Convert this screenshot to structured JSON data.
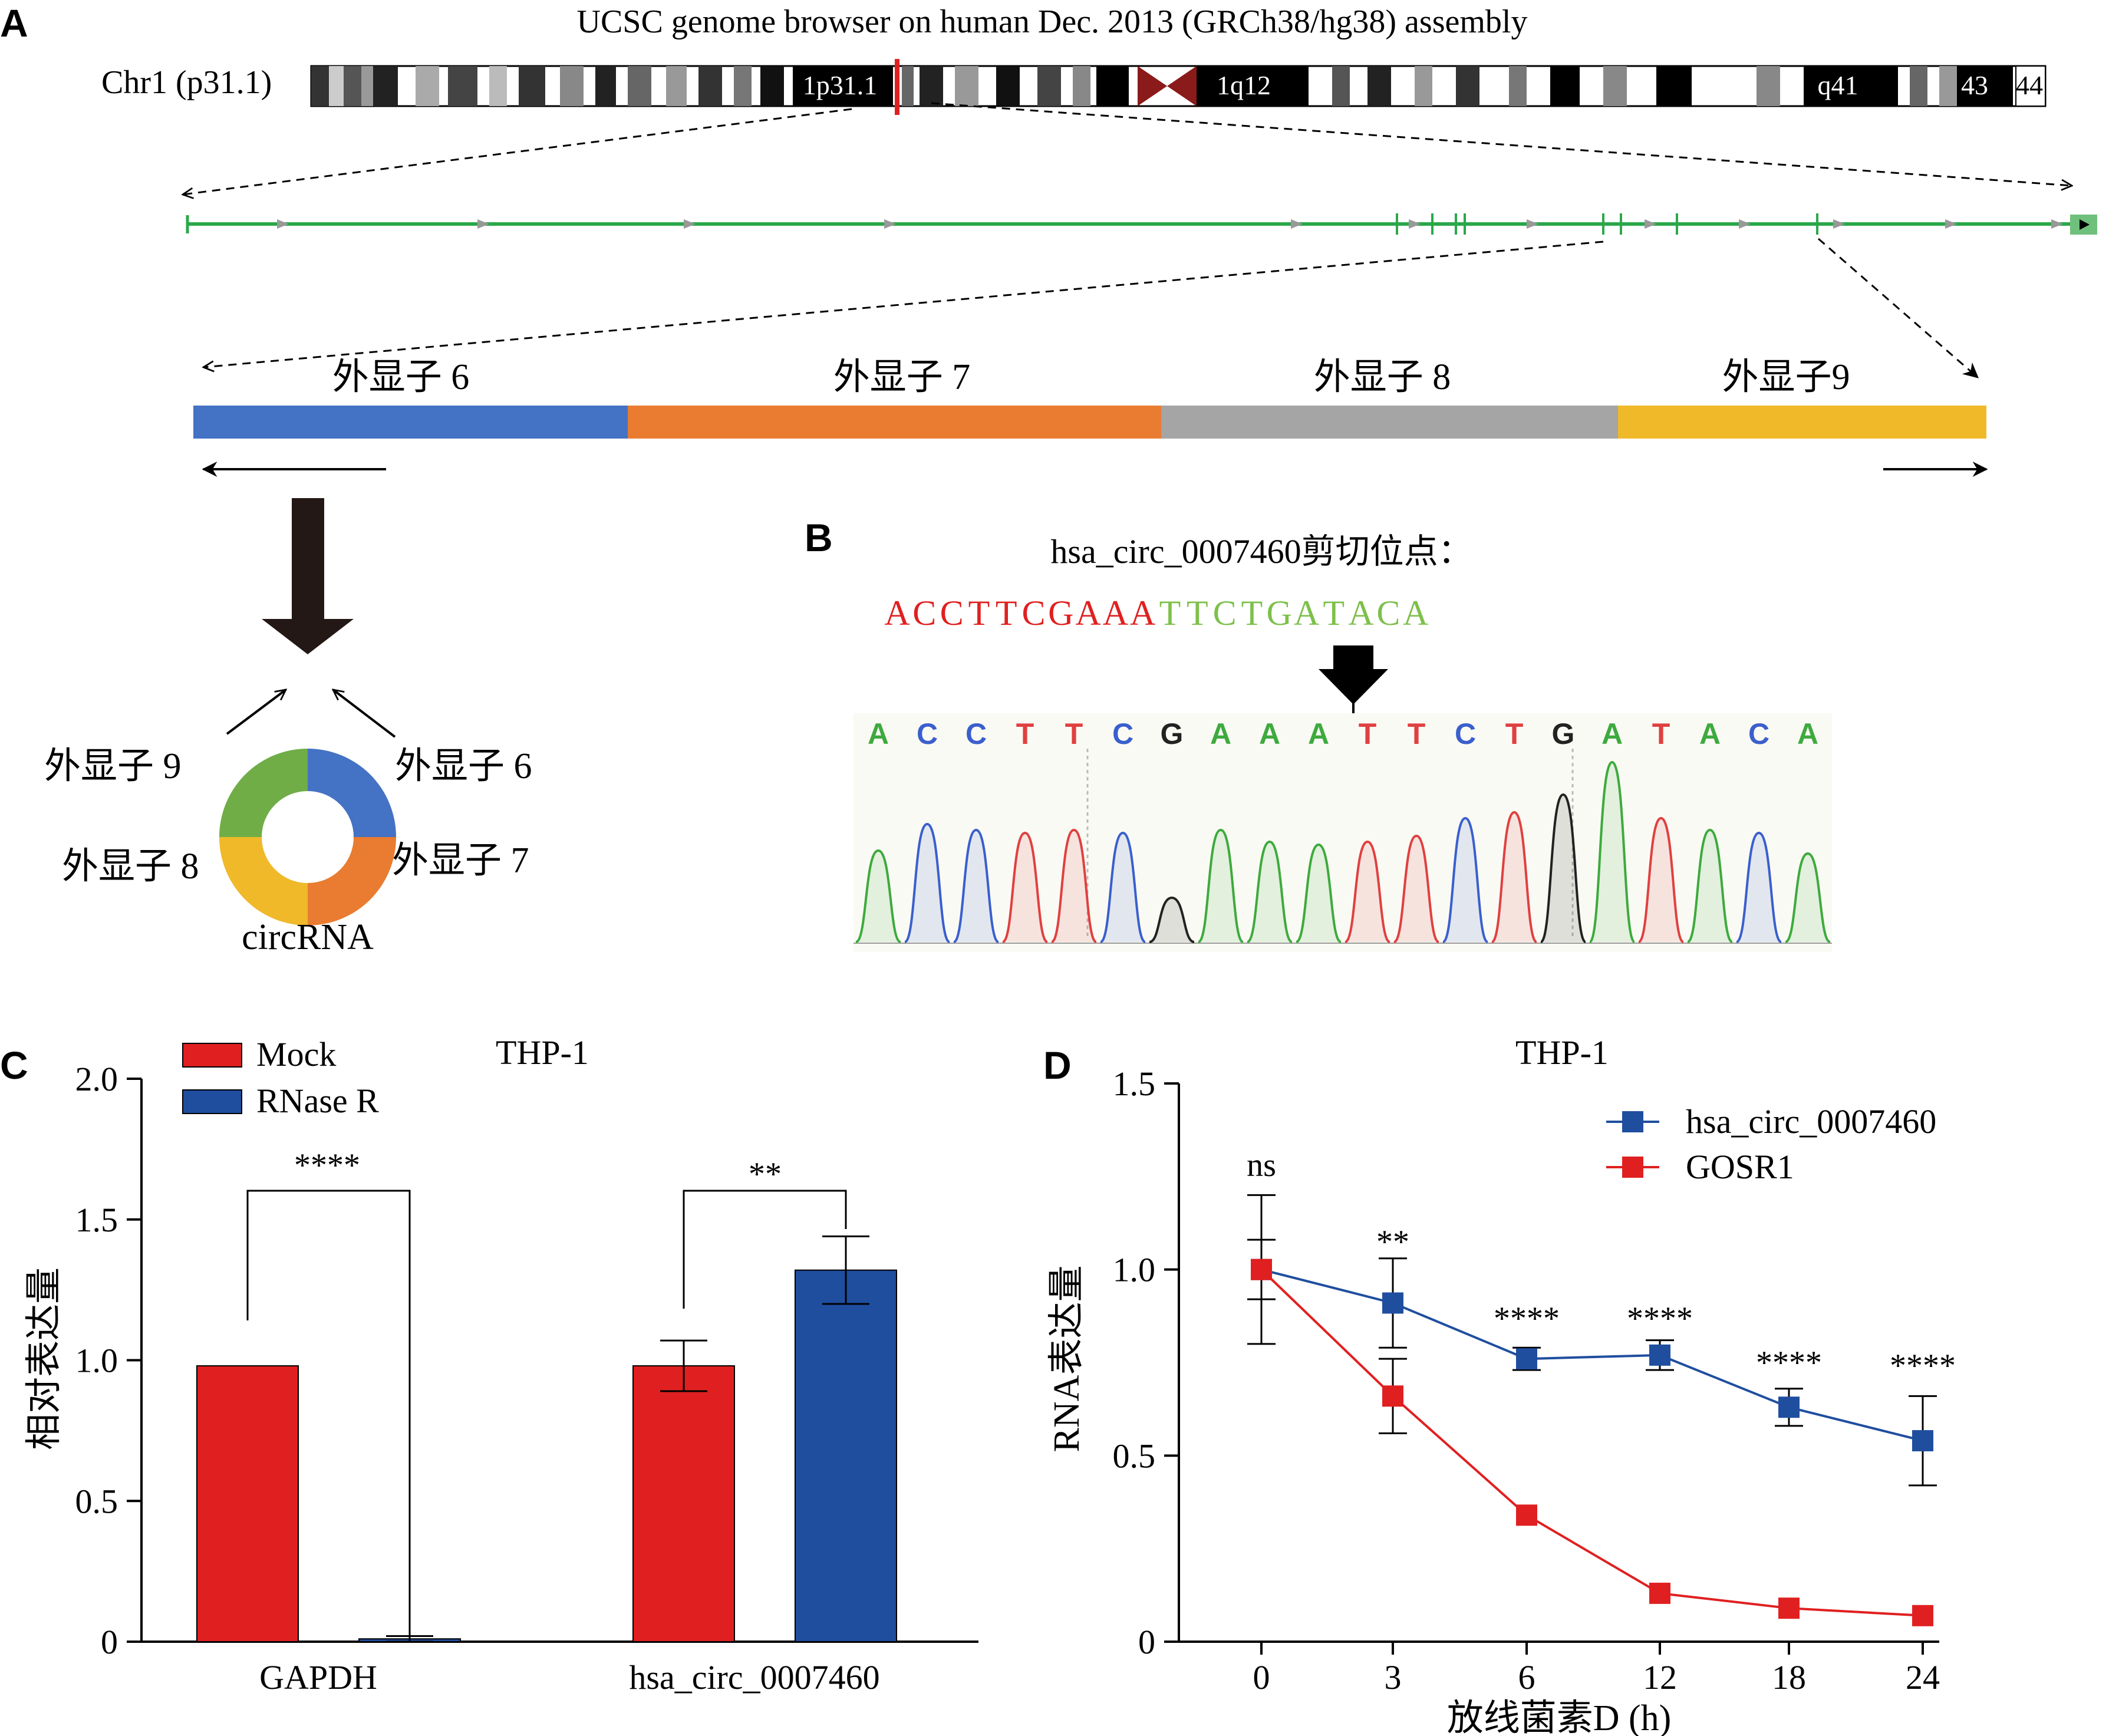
{
  "panel_labels": {
    "a": "A",
    "b": "B",
    "c": "C",
    "d": "D"
  },
  "panel_a": {
    "title": "UCSC genome browser on human Dec. 2013 (GRCh38/hg38) assembly",
    "chrom_label": "Chr1 (p31.1)",
    "band_labels": [
      "1p31.1",
      "1q12",
      "q41",
      "43",
      "44"
    ],
    "exons": [
      {
        "label": "外显子 6",
        "color": "#4472C4"
      },
      {
        "label": "外显子 7",
        "color": "#E97C30"
      },
      {
        "label": "外显子 8",
        "color": "#A5A5A5"
      },
      {
        "label": "外显子9",
        "color": "#F0B92A"
      }
    ],
    "ring_labels": {
      "exon6": "外显子 6",
      "exon7": "外显子 7",
      "exon8": "外显子 8",
      "exon9": "外显子 9",
      "center": "circRNA"
    },
    "ring_colors": {
      "exon6": "#4472C4",
      "exon7": "#E97C30",
      "exon8": "#F0B92A",
      "exon9": "#70AD47"
    },
    "gene_track_color": "#2BA84A"
  },
  "panel_b": {
    "title": "hsa_circ_0007460剪切位点：",
    "seq_left": [
      "A",
      "C",
      "C",
      "T",
      "T",
      "C",
      "G",
      "A",
      "A",
      "A"
    ],
    "seq_right": [
      "T",
      "T",
      "C",
      "T",
      "G",
      "A",
      "T",
      "A",
      "C",
      "A"
    ],
    "seq_left_color": "#E02020",
    "seq_right_color": "#7DC04B",
    "chrom_bases": [
      "A",
      "C",
      "C",
      "T",
      "T",
      "C",
      "G",
      "A",
      "A",
      "A",
      "T",
      "T",
      "C",
      "T",
      "G",
      "A",
      "T",
      "A",
      "C",
      "A"
    ],
    "base_colors": {
      "A": "#3DAA3D",
      "C": "#3A5FCD",
      "G": "#222222",
      "T": "#E04040"
    }
  },
  "panel_c": {
    "title": "THP-1",
    "ylabel": "相对表达量",
    "legend": [
      {
        "name": "Mock",
        "color": "#E02020"
      },
      {
        "name": "RNase R",
        "color": "#1F4E9F"
      }
    ],
    "sig": [
      "****",
      "**"
    ],
    "ytick_labels": [
      "0",
      "0.5",
      "1.0",
      "1.5",
      "2.0"
    ]
  },
  "panel_d": {
    "title": "THP-1",
    "ylabel": "RNA表达量",
    "xlabel": "放线菌素D (h)",
    "ytick_labels": [
      "0",
      "0.5",
      "1.0",
      "1.5"
    ],
    "sig": [
      "ns",
      "**",
      "****",
      "****",
      "****",
      "****"
    ]
  },
  "chart_data": [
    {
      "type": "bar",
      "title": "THP-1",
      "ylabel": "相对表达量",
      "xlabel": "",
      "categories": [
        "GAPDH",
        "hsa_circ_0007460"
      ],
      "series": [
        {
          "name": "Mock",
          "values": [
            0.98,
            0.98
          ],
          "errors": [
            0,
            0.09
          ]
        },
        {
          "name": "RNase R",
          "values": [
            0.01,
            1.32
          ],
          "errors": [
            0.01,
            0.12
          ]
        }
      ],
      "ylim": [
        0,
        2.0
      ],
      "yticks": [
        0,
        0.5,
        1.0,
        1.5,
        2.0
      ],
      "legend": "top-left"
    },
    {
      "type": "line",
      "title": "THP-1",
      "ylabel": "RNA表达量",
      "xlabel": "放线菌素D (h)",
      "x": [
        "0",
        "3",
        "6",
        "12",
        "18",
        "24"
      ],
      "series": [
        {
          "name": "hsa_circ_0007460",
          "values": [
            1.0,
            0.91,
            0.76,
            0.77,
            0.63,
            0.54
          ],
          "errors": [
            0.2,
            0.12,
            0.03,
            0.04,
            0.05,
            0.12
          ]
        },
        {
          "name": "GOSR1",
          "values": [
            1.0,
            0.66,
            0.34,
            0.13,
            0.09,
            0.07
          ],
          "errors": [
            0.08,
            0.1,
            0,
            0,
            0,
            0
          ]
        }
      ],
      "ylim": [
        0,
        1.5
      ],
      "yticks": [
        0,
        0.5,
        1.0,
        1.5
      ],
      "legend": "top-right"
    }
  ]
}
